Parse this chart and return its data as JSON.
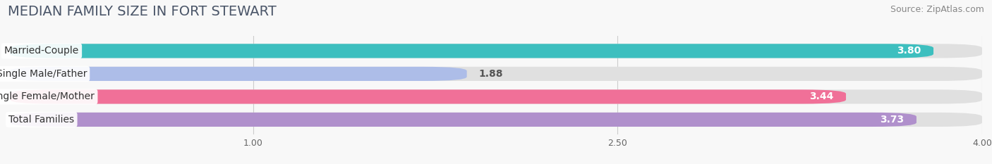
{
  "title": "MEDIAN FAMILY SIZE IN FORT STEWART",
  "source": "Source: ZipAtlas.com",
  "categories": [
    "Married-Couple",
    "Single Male/Father",
    "Single Female/Mother",
    "Total Families"
  ],
  "values": [
    3.8,
    1.88,
    3.44,
    3.73
  ],
  "bar_colors": [
    "#3dbfbf",
    "#adbde8",
    "#f07098",
    "#b090cc"
  ],
  "bar_bg_color": "#e0e0e0",
  "xlim": [
    0,
    4.0
  ],
  "xticks": [
    1.0,
    2.5,
    4.0
  ],
  "background_color": "#f8f8f8",
  "bar_height": 0.62,
  "title_fontsize": 14,
  "source_fontsize": 9,
  "label_fontsize": 10,
  "value_fontsize": 10
}
